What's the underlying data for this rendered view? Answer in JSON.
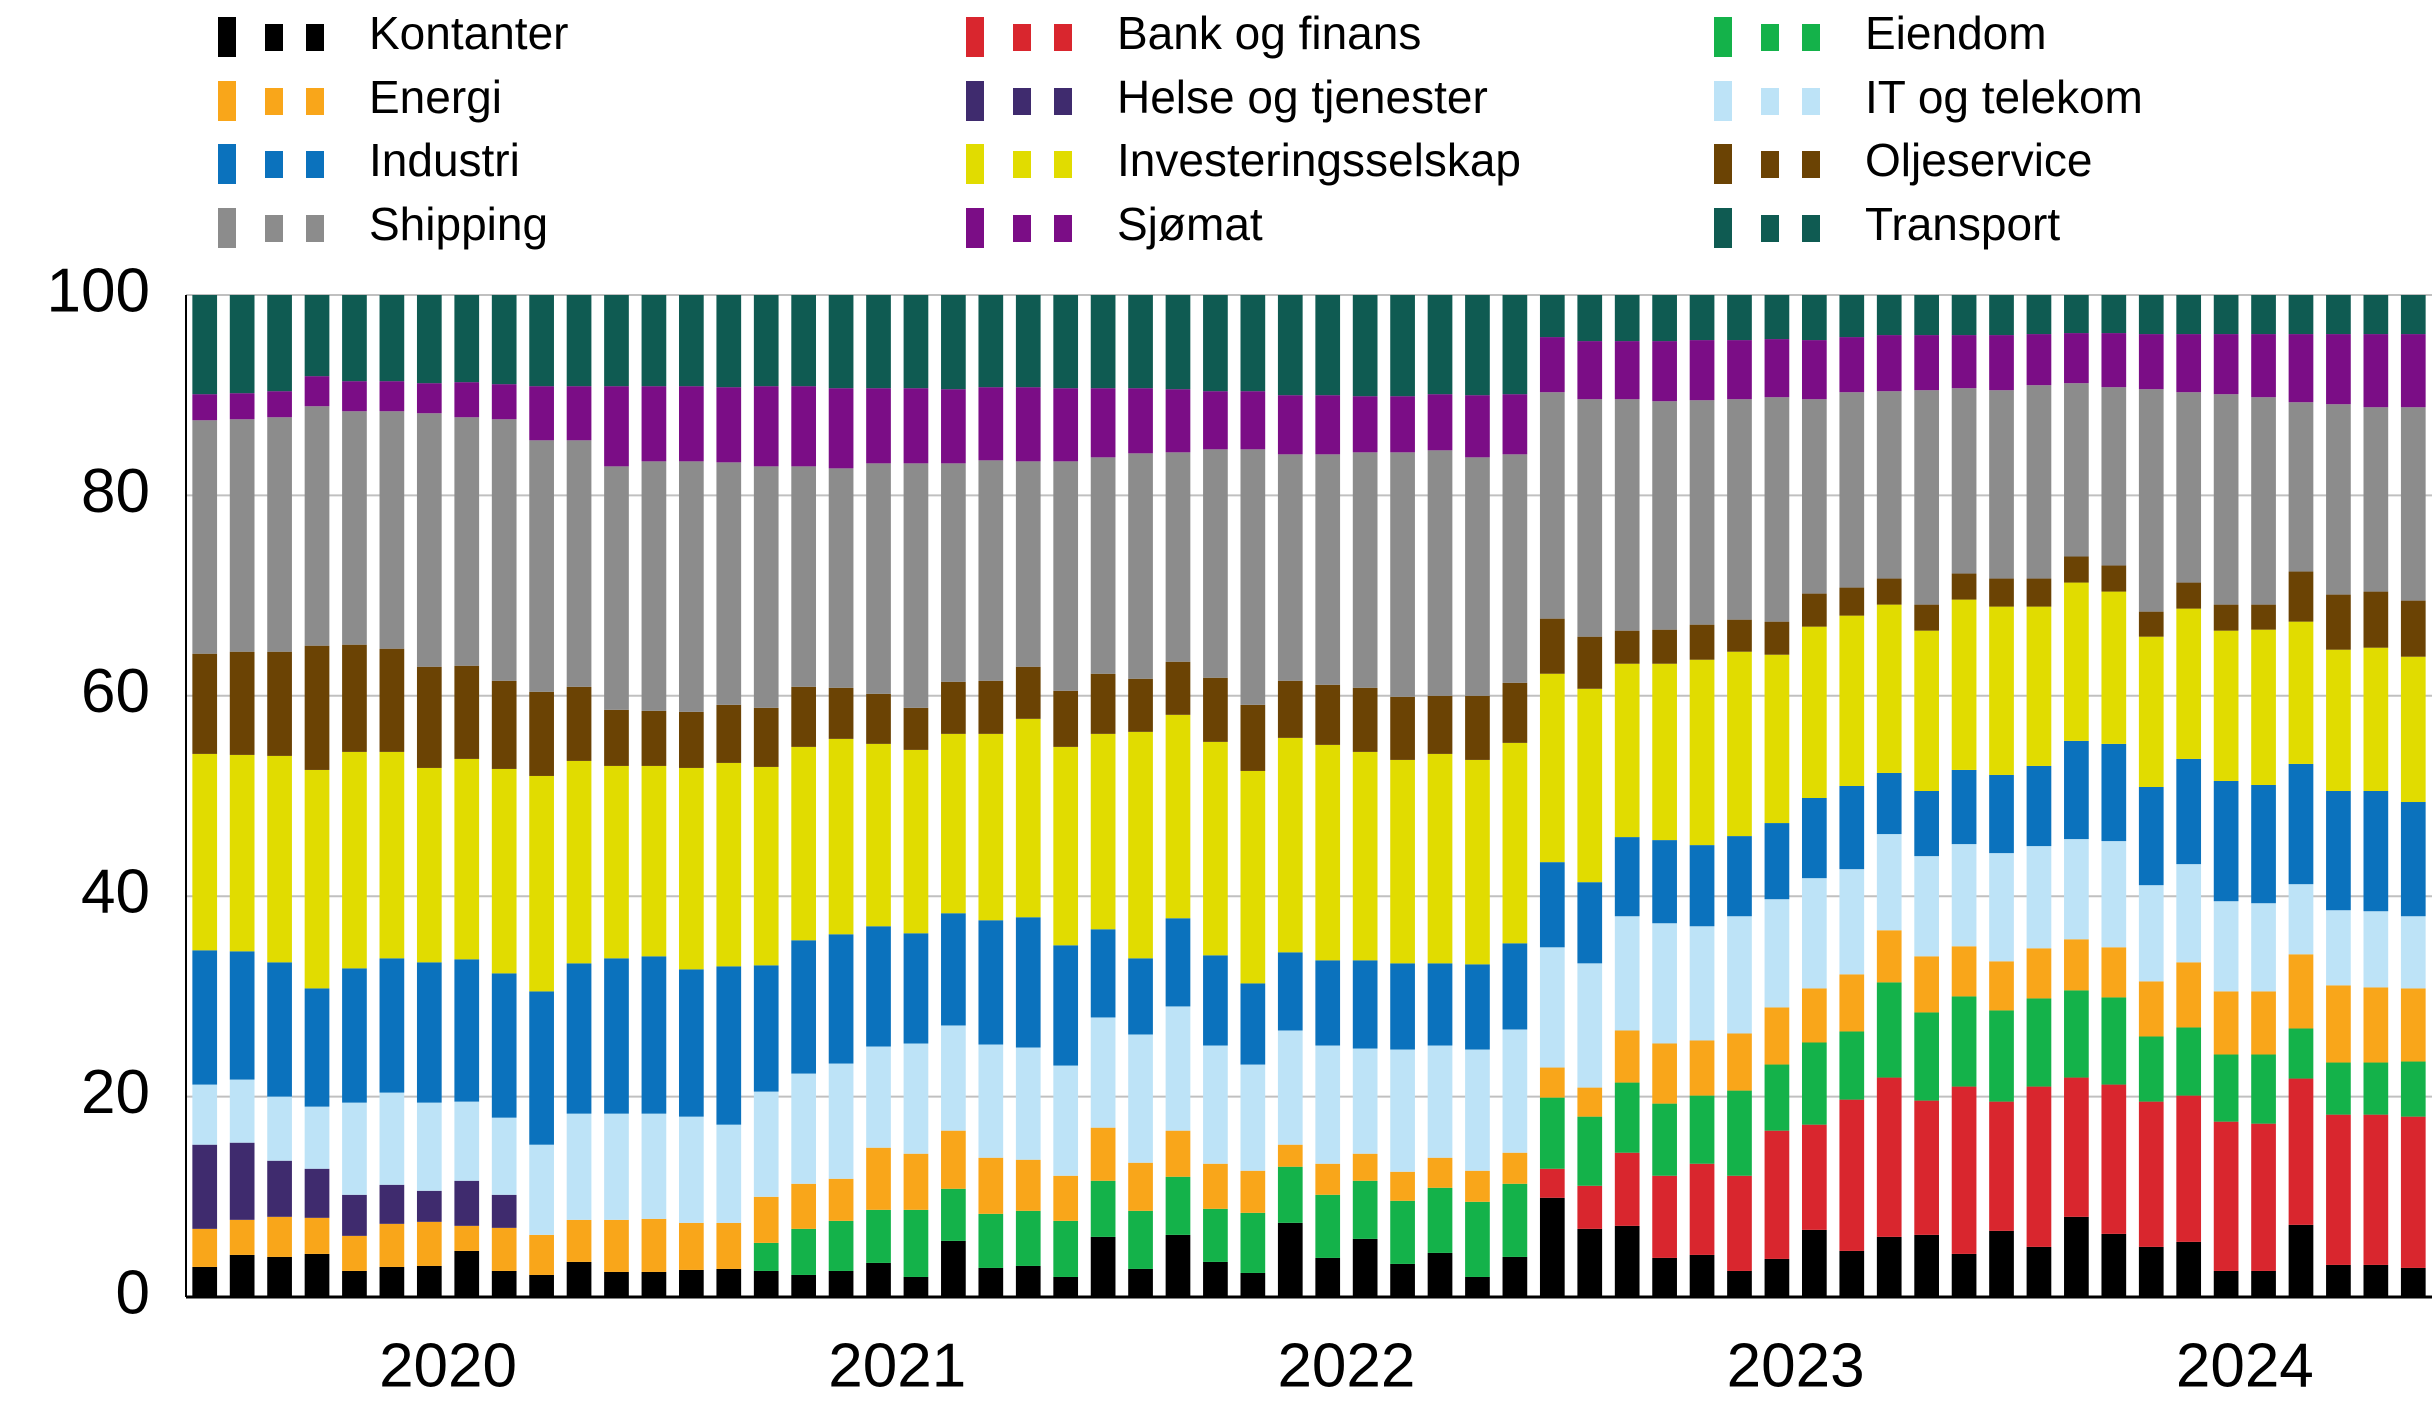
{
  "chart_data": {
    "type": "stacked_bar",
    "categories": [
      null,
      null,
      null,
      null,
      null,
      null,
      "2020",
      null,
      null,
      null,
      null,
      null,
      null,
      null,
      null,
      null,
      null,
      null,
      "2021",
      null,
      null,
      null,
      null,
      null,
      null,
      null,
      null,
      null,
      null,
      null,
      "2022",
      null,
      null,
      null,
      null,
      null,
      null,
      null,
      null,
      null,
      null,
      null,
      "2023",
      null,
      null,
      null,
      null,
      null,
      null,
      null,
      null,
      null,
      null,
      null,
      "2024",
      null,
      null,
      null,
      null,
      null
    ],
    "ylim": [
      0,
      100
    ],
    "yticks": [
      0,
      20,
      40,
      60,
      80,
      100
    ],
    "grid": true,
    "series": [
      {
        "name": "Kontanter",
        "color": "#000000",
        "values": [
          3.0,
          4.2,
          4.0,
          4.3,
          2.6,
          3.0,
          3.1,
          4.6,
          2.6,
          2.2,
          3.5,
          2.5,
          2.5,
          2.7,
          2.8,
          2.6,
          2.2,
          2.6,
          3.4,
          2.0,
          5.6,
          2.9,
          3.1,
          2.0,
          6.0,
          2.8,
          6.2,
          3.5,
          2.4,
          7.4,
          3.9,
          5.8,
          3.3,
          4.4,
          2.0,
          4.0,
          9.9,
          6.8,
          7.1,
          3.9,
          4.2,
          2.6,
          3.8,
          6.7,
          4.6,
          6.0,
          6.2,
          4.3,
          6.6,
          5.0,
          8.0,
          6.3,
          5.0,
          5.5,
          2.6,
          2.6,
          7.2,
          3.2,
          3.2,
          2.9
        ]
      },
      {
        "name": "Bank og finans",
        "color": "#d9262e",
        "values": [
          0,
          0,
          0,
          0,
          0,
          0,
          0,
          0,
          0,
          0,
          0,
          0,
          0,
          0,
          0,
          0,
          0,
          0,
          0,
          0,
          0,
          0,
          0,
          0,
          0,
          0,
          0,
          0,
          0,
          0,
          0,
          0,
          0,
          0,
          0,
          0,
          2.9,
          4.3,
          7.3,
          8.2,
          9.1,
          9.5,
          12.8,
          10.5,
          15.1,
          15.9,
          13.4,
          16.7,
          12.9,
          16.0,
          13.9,
          14.9,
          14.5,
          14.6,
          14.9,
          14.7,
          14.6,
          15.0,
          15.0,
          15.1
        ]
      },
      {
        "name": "Eiendom",
        "color": "#14b24a",
        "values": [
          0,
          0,
          0,
          0,
          0,
          0,
          0,
          0,
          0,
          0,
          0,
          0,
          0,
          0,
          0,
          2.8,
          4.6,
          5.0,
          5.3,
          6.7,
          5.2,
          5.4,
          5.5,
          5.6,
          5.6,
          5.8,
          5.8,
          5.3,
          6.0,
          5.6,
          6.3,
          5.8,
          6.3,
          6.5,
          7.5,
          7.3,
          7.1,
          6.9,
          7.0,
          7.2,
          6.8,
          8.5,
          6.6,
          8.2,
          6.8,
          9.5,
          8.8,
          9.0,
          9.1,
          8.8,
          8.7,
          8.7,
          6.5,
          6.8,
          6.7,
          6.9,
          5.0,
          5.2,
          5.2,
          5.5
        ]
      },
      {
        "name": "Energi",
        "color": "#f9a61a",
        "values": [
          3.8,
          3.5,
          4.0,
          3.6,
          3.5,
          4.3,
          4.4,
          2.5,
          4.3,
          4.0,
          4.2,
          5.2,
          5.3,
          4.7,
          4.6,
          4.6,
          4.5,
          4.2,
          6.2,
          5.6,
          5.8,
          5.6,
          5.1,
          4.5,
          5.3,
          4.8,
          4.6,
          4.5,
          4.2,
          2.2,
          3.1,
          2.7,
          2.9,
          3.0,
          3.1,
          3.1,
          3.0,
          2.9,
          5.2,
          6.0,
          5.5,
          5.7,
          5.7,
          5.4,
          5.7,
          5.2,
          5.6,
          5.0,
          4.9,
          5.0,
          5.1,
          5.0,
          5.5,
          6.5,
          6.3,
          6.3,
          7.4,
          7.7,
          7.5,
          7.3
        ]
      },
      {
        "name": "Helse og tjenester",
        "color": "#3f2b6e",
        "values": [
          8.4,
          7.7,
          5.6,
          4.9,
          4.1,
          3.9,
          3.1,
          4.5,
          3.3,
          0,
          0,
          0,
          0,
          0,
          0,
          0,
          0,
          0,
          0,
          0,
          0,
          0,
          0,
          0,
          0,
          0,
          0,
          0,
          0,
          0,
          0,
          0,
          0,
          0,
          0,
          0,
          0,
          0,
          0,
          0,
          0,
          0,
          0,
          0,
          0,
          0,
          0,
          0,
          0,
          0,
          0,
          0,
          0,
          0,
          0,
          0,
          0,
          0,
          0,
          0
        ]
      },
      {
        "name": "IT og telekom",
        "color": "#bde3f7",
        "values": [
          6.0,
          6.3,
          6.4,
          6.2,
          9.2,
          9.2,
          8.8,
          7.9,
          7.7,
          9.0,
          10.6,
          10.6,
          10.5,
          10.6,
          9.8,
          10.5,
          11.0,
          11.5,
          10.1,
          11.0,
          10.5,
          11.3,
          11.2,
          11.0,
          11.0,
          12.8,
          12.4,
          11.8,
          10.6,
          11.4,
          11.8,
          10.5,
          12.2,
          11.2,
          12.1,
          12.3,
          12.0,
          12.4,
          11.4,
          12.0,
          11.4,
          11.7,
          10.8,
          11.0,
          10.5,
          9.6,
          10.0,
          10.2,
          10.8,
          10.2,
          10.0,
          10.6,
          9.6,
          9.8,
          9.0,
          8.8,
          7.0,
          7.5,
          7.6,
          7.2
        ]
      },
      {
        "name": "Industri",
        "color": "#0b72bd",
        "values": [
          13.4,
          12.8,
          13.4,
          11.8,
          13.4,
          13.4,
          14.0,
          14.2,
          14.4,
          15.3,
          15.0,
          15.5,
          15.7,
          14.7,
          15.8,
          12.6,
          13.3,
          12.9,
          12.0,
          11.0,
          11.2,
          12.4,
          13.0,
          12.0,
          8.8,
          7.6,
          8.8,
          9.0,
          8.1,
          7.8,
          8.5,
          8.8,
          8.6,
          8.2,
          8.5,
          8.6,
          8.5,
          8.1,
          7.9,
          8.3,
          8.1,
          8.0,
          7.6,
          8.0,
          8.3,
          6.1,
          6.5,
          7.4,
          7.8,
          8.0,
          9.8,
          9.7,
          9.8,
          10.5,
          12.0,
          11.8,
          12.0,
          11.9,
          12.0,
          11.4
        ]
      },
      {
        "name": "Investeringsselskap",
        "color": "#e1dc00",
        "values": [
          19.6,
          19.6,
          20.6,
          21.8,
          21.6,
          20.6,
          19.4,
          20.0,
          20.4,
          21.5,
          20.2,
          19.2,
          19.0,
          20.1,
          20.3,
          19.8,
          19.3,
          19.5,
          18.2,
          18.3,
          17.9,
          18.6,
          19.8,
          19.8,
          19.5,
          22.6,
          20.3,
          21.3,
          21.2,
          21.4,
          21.5,
          20.8,
          20.3,
          20.9,
          20.4,
          20.0,
          18.8,
          19.3,
          17.3,
          17.6,
          18.5,
          18.4,
          16.8,
          17.1,
          17.0,
          16.8,
          16.0,
          17.0,
          16.8,
          15.9,
          15.8,
          15.2,
          15.0,
          15.0,
          15.0,
          15.5,
          14.2,
          14.1,
          14.3,
          14.5
        ]
      },
      {
        "name": "Oljeservice",
        "color": "#6b4304",
        "values": [
          10.0,
          10.3,
          10.4,
          12.4,
          10.7,
          10.3,
          10.1,
          9.3,
          8.8,
          8.4,
          7.4,
          5.6,
          5.5,
          5.6,
          5.8,
          5.9,
          6.0,
          5.1,
          5.0,
          4.2,
          5.2,
          5.3,
          5.2,
          5.6,
          6.0,
          5.3,
          5.3,
          6.4,
          6.6,
          5.7,
          6.0,
          6.4,
          6.3,
          5.8,
          6.4,
          6.0,
          5.5,
          5.2,
          3.3,
          3.4,
          3.5,
          3.2,
          3.3,
          3.3,
          2.8,
          2.6,
          2.6,
          2.6,
          2.8,
          2.8,
          2.6,
          2.6,
          2.5,
          2.6,
          2.6,
          2.5,
          5.0,
          5.5,
          5.6,
          5.6
        ]
      },
      {
        "name": "Shipping",
        "color": "#8c8c8c",
        "values": [
          23.3,
          23.2,
          23.4,
          23.9,
          23.3,
          23.7,
          25.3,
          24.8,
          26.1,
          25.1,
          24.6,
          24.3,
          24.9,
          25.0,
          24.2,
          24.1,
          22.0,
          21.9,
          23.0,
          24.4,
          21.8,
          22.0,
          20.5,
          22.9,
          21.6,
          22.5,
          20.9,
          22.8,
          25.5,
          22.6,
          23.0,
          23.5,
          24.4,
          24.5,
          23.8,
          22.8,
          22.6,
          23.7,
          23.1,
          22.8,
          22.4,
          22.0,
          22.4,
          19.4,
          19.5,
          18.7,
          21.4,
          18.5,
          18.8,
          19.3,
          17.3,
          17.8,
          22.2,
          19.0,
          21.0,
          20.7,
          16.9,
          19.0,
          18.4,
          19.3
        ]
      },
      {
        "name": "Sjømat",
        "color": "#7b0d86",
        "values": [
          2.6,
          2.6,
          2.6,
          3.0,
          3.0,
          3.0,
          3.0,
          3.5,
          3.5,
          5.4,
          5.4,
          8.0,
          7.5,
          7.5,
          7.5,
          8.0,
          8.0,
          8.0,
          7.5,
          7.5,
          7.4,
          7.3,
          7.4,
          7.3,
          6.9,
          6.5,
          6.3,
          5.8,
          5.8,
          5.9,
          5.9,
          5.6,
          5.6,
          5.6,
          6.2,
          6.0,
          5.5,
          5.8,
          5.8,
          6.0,
          6.0,
          5.9,
          5.8,
          5.9,
          5.5,
          5.6,
          5.5,
          5.3,
          5.5,
          5.1,
          5.0,
          5.4,
          5.5,
          5.8,
          6.0,
          6.3,
          6.8,
          7.0,
          7.3,
          7.3
        ]
      },
      {
        "name": "Transport",
        "color": "#0f5b52",
        "values": [
          9.9,
          9.8,
          9.6,
          8.1,
          8.6,
          8.6,
          8.8,
          8.7,
          8.9,
          9.1,
          9.1,
          9.1,
          9.1,
          9.1,
          9.2,
          9.1,
          9.1,
          9.3,
          9.3,
          9.3,
          9.4,
          9.2,
          9.2,
          9.3,
          9.3,
          9.3,
          9.4,
          9.6,
          9.6,
          10.0,
          10.0,
          10.1,
          10.1,
          9.9,
          10.0,
          9.9,
          4.2,
          4.6,
          4.6,
          4.6,
          4.5,
          4.5,
          4.4,
          4.5,
          4.2,
          4.0,
          4.0,
          4.0,
          4.0,
          3.9,
          3.8,
          3.8,
          3.9,
          3.9,
          3.9,
          3.9,
          3.9,
          3.9,
          3.9,
          3.9
        ]
      }
    ]
  }
}
